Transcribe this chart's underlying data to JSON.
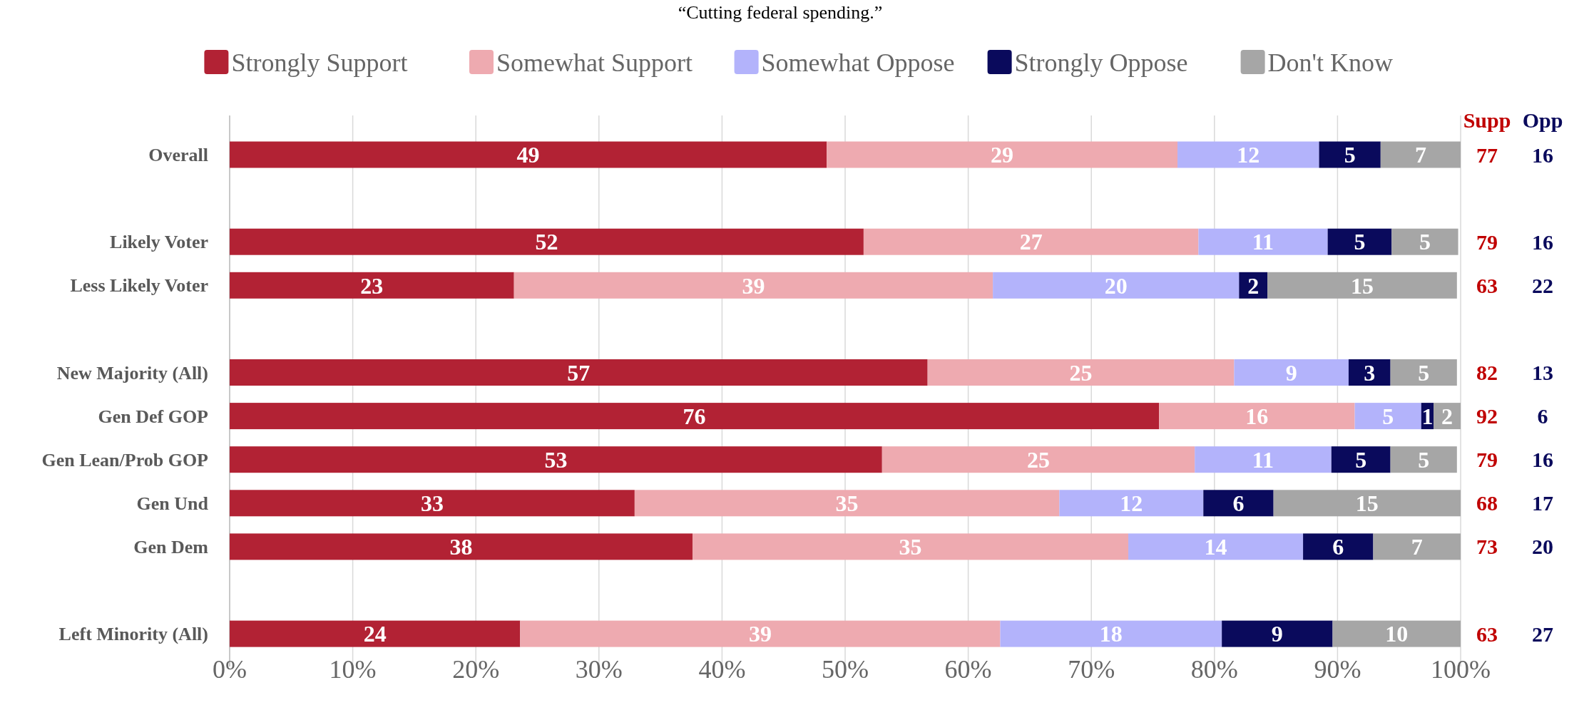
{
  "chart_data": {
    "type": "bar",
    "orientation": "horizontal",
    "stacked": true,
    "title": "“Cutting federal spending.”",
    "legend": "top",
    "grid": "x",
    "categories": [
      "Overall",
      null,
      "Likely Voter",
      "Less Likely Voter",
      null,
      "New Majority (All)",
      "Gen Def GOP",
      "Gen Lean/Prob GOP",
      "Gen Und",
      "Gen Dem",
      null,
      "Left Minority (All)"
    ],
    "xlim": [
      0,
      100
    ],
    "xticks": [
      {
        "value": 0,
        "label": "0%"
      },
      {
        "value": 10,
        "label": "10%"
      },
      {
        "value": 20,
        "label": "20%"
      },
      {
        "value": 30,
        "label": "30%"
      },
      {
        "value": 40,
        "label": "40%"
      },
      {
        "value": 50,
        "label": "50%"
      },
      {
        "value": 60,
        "label": "60%"
      },
      {
        "value": 70,
        "label": "70%"
      },
      {
        "value": 80,
        "label": "80%"
      },
      {
        "value": 90,
        "label": "90%"
      },
      {
        "value": 100,
        "label": "100%"
      }
    ],
    "series": [
      {
        "name": "Strongly Support",
        "color": "#b22234",
        "values": [
          48.5,
          null,
          51.5,
          23.1,
          null,
          56.7,
          75.5,
          53.0,
          32.9,
          37.6,
          null,
          23.6
        ],
        "value_labels": [
          "49",
          null,
          "52",
          "23",
          null,
          "57",
          "76",
          "53",
          "33",
          "38",
          null,
          "24"
        ]
      },
      {
        "name": "Somewhat Support",
        "color": "#eeaab0",
        "values": [
          28.5,
          null,
          27.2,
          38.9,
          null,
          24.9,
          15.9,
          25.4,
          34.5,
          35.4,
          null,
          39.0
        ],
        "value_labels": [
          "29",
          null,
          "27",
          "39",
          null,
          "25",
          "16",
          "25",
          "35",
          "35",
          null,
          "39"
        ]
      },
      {
        "name": "Somewhat Oppose",
        "color": "#b3b3fb",
        "values": [
          11.5,
          null,
          10.5,
          20.0,
          null,
          9.3,
          5.4,
          11.1,
          11.7,
          14.2,
          null,
          18.0
        ],
        "value_labels": [
          "12",
          null,
          "11",
          "20",
          null,
          "9",
          "5",
          "11",
          "12",
          "14",
          null,
          "18"
        ]
      },
      {
        "name": "Strongly Oppose",
        "color": "#0a0a5c",
        "values": [
          5.0,
          null,
          5.2,
          2.3,
          null,
          3.4,
          1.0,
          4.8,
          5.7,
          5.7,
          null,
          9.0
        ],
        "value_labels": [
          "5",
          null,
          "5",
          "2",
          null,
          "3",
          "1",
          "5",
          "6",
          "6",
          null,
          "9"
        ]
      },
      {
        "name": "Don't Know",
        "color": "#a6a6a6",
        "values": [
          6.5,
          null,
          5.4,
          15.4,
          null,
          5.4,
          2.2,
          5.4,
          15.2,
          7.1,
          null,
          10.4
        ],
        "value_labels": [
          "7",
          null,
          "5",
          "15",
          null,
          "5",
          "2",
          "5",
          "15",
          "7",
          null,
          "10"
        ]
      }
    ],
    "annotations": [
      "Supp",
      "Opp",
      "77",
      "16",
      "79",
      "16",
      "63",
      "22",
      "82",
      "13",
      "92",
      "6",
      "79",
      "16",
      "68",
      "17",
      "73",
      "20",
      "63",
      "27"
    ]
  }
}
